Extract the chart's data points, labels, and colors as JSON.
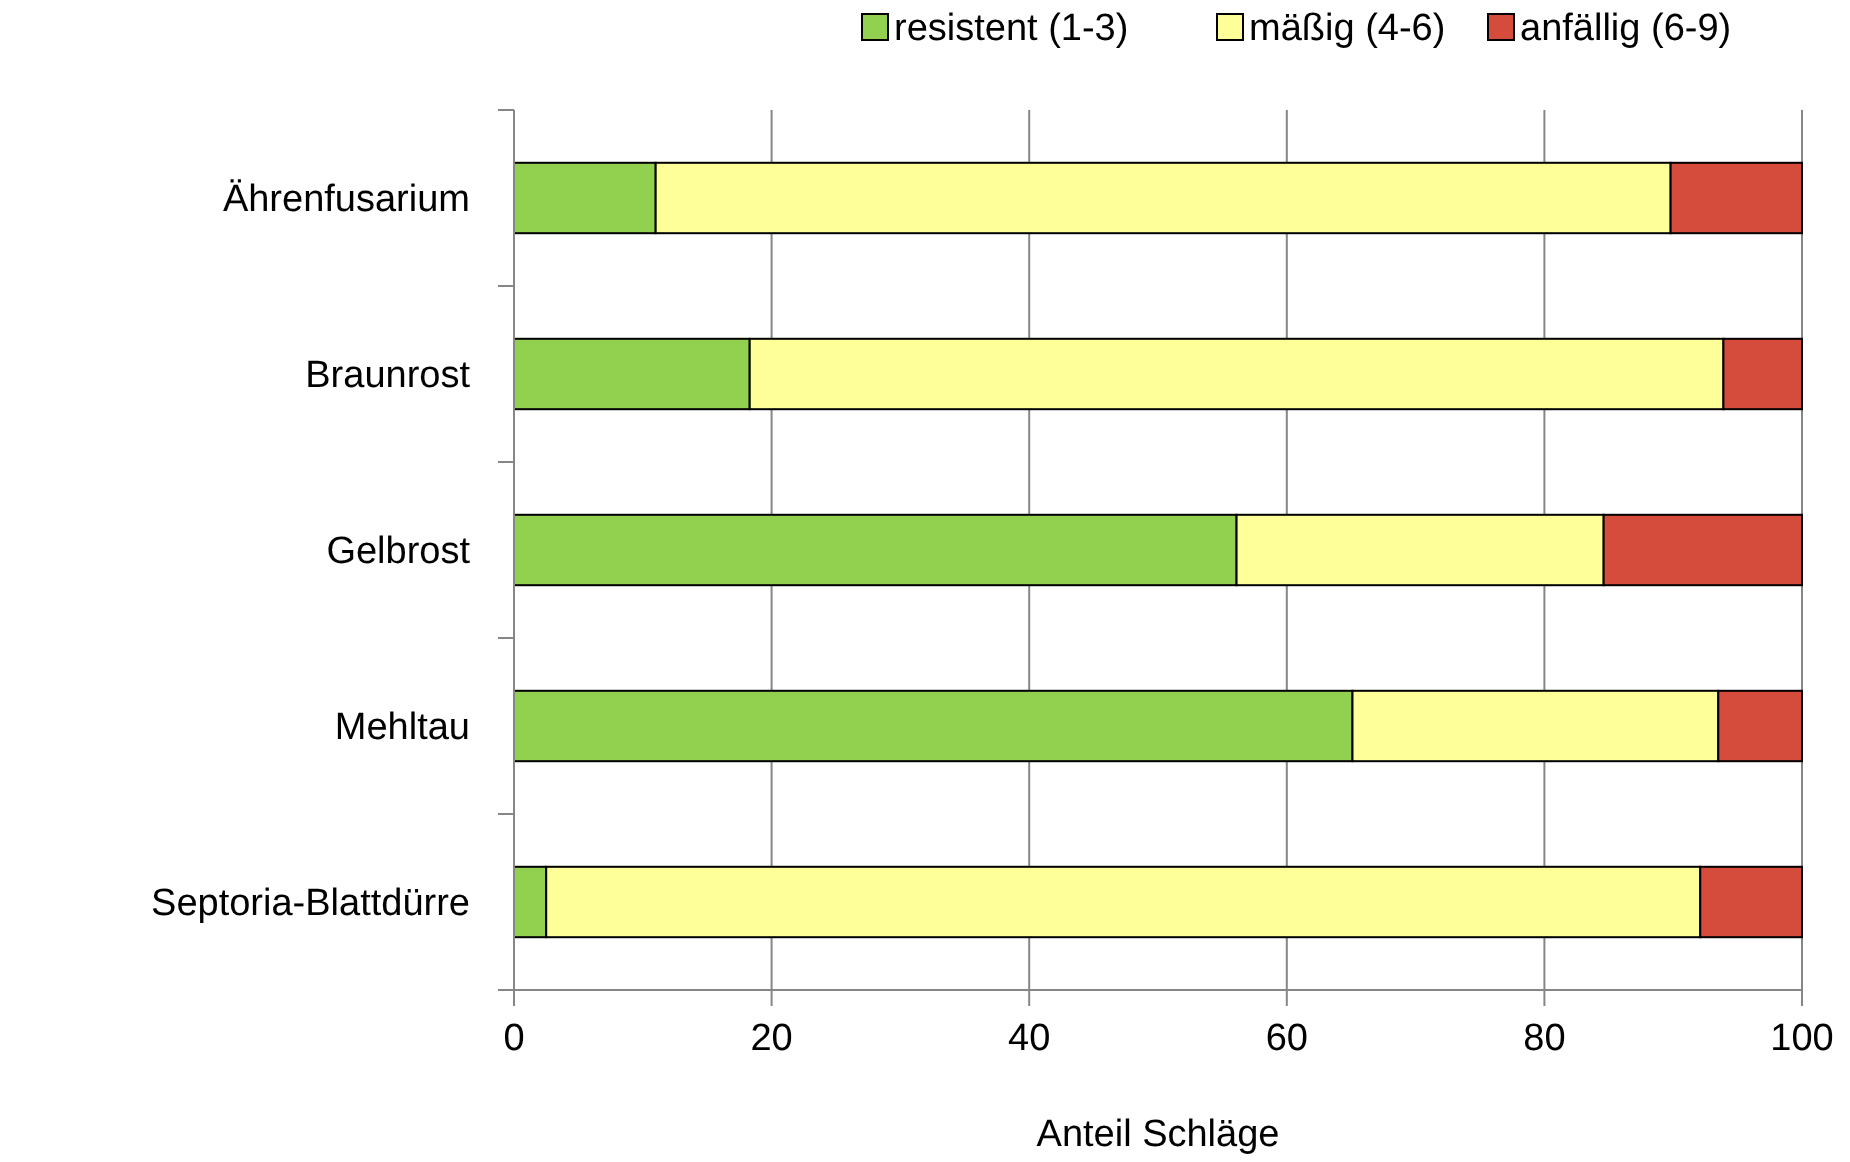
{
  "chart_data": {
    "type": "bar",
    "orientation": "horizontal",
    "stacked": true,
    "xlabel": "Anteil Schläge",
    "categories": [
      "Ährenfusarium",
      "Braunrost",
      "Gelbrost",
      "Mehltau",
      "Septoria-Blattdürre"
    ],
    "series": [
      {
        "name": "resistent (1-3)",
        "color": "#92d050",
        "values": [
          11,
          18.3,
          56.1,
          65.1,
          2.5
        ]
      },
      {
        "name": "mäßig (4-6)",
        "color": "#ffff99",
        "values": [
          78.8,
          75.6,
          28.5,
          28.4,
          89.6
        ]
      },
      {
        "name": "anfällig (6-9)",
        "color": "#d54b3c",
        "values": [
          10.2,
          6.1,
          15.4,
          6.5,
          7.9
        ]
      }
    ],
    "xlim": [
      0,
      100
    ],
    "xticks": [
      0,
      20,
      40,
      60,
      80,
      100
    ],
    "grid": "x",
    "legend": "top right"
  }
}
